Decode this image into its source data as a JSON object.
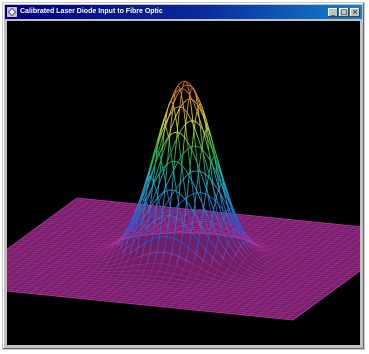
{
  "window": {
    "title": "Calibrated Laser Diode Input to Fibre Optic",
    "icon": "app-icon",
    "controls": [
      {
        "name": "minimize-button",
        "glyph": "_"
      },
      {
        "name": "maximize-button",
        "glyph": "□"
      },
      {
        "name": "close-button",
        "glyph": "×"
      }
    ]
  },
  "plot": {
    "type": "surface-3d",
    "description_visible": false,
    "colors": {
      "background": "#000000",
      "base": "#b8349e",
      "low": "#2457d6",
      "mid": "#19b84a",
      "high": "#e8dd28",
      "peak": "#d85a2a"
    }
  }
}
